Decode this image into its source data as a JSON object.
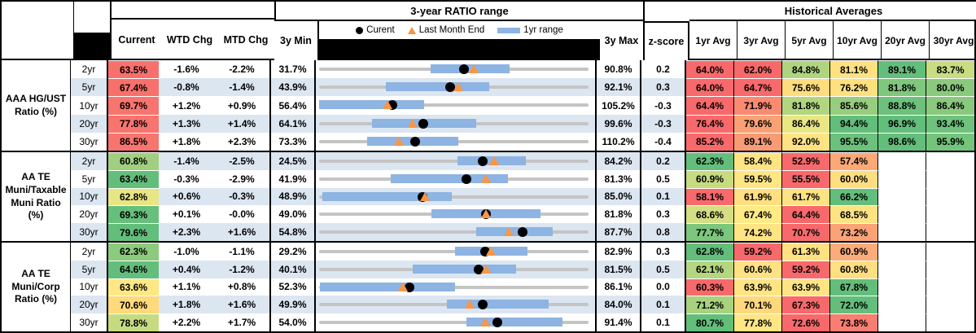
{
  "header": {
    "range_title": "3-year RATIO range",
    "hist_title": "Historical Averages",
    "col_current": "Current",
    "col_wtd": "WTD Chg",
    "col_mtd": "MTD Chg",
    "col_min": "3y Min",
    "col_max": "3y Max",
    "col_z": "z-score",
    "avg_cols": [
      "1yr Avg",
      "3yr Avg",
      "5yr Avg",
      "10yr Avg",
      "20yr Avg",
      "30yr Avg"
    ],
    "legend": {
      "current": "Curent",
      "last_month": "Last Month End",
      "range": "1yr range"
    }
  },
  "colors": {
    "stripe_blue": "#DCE6F1",
    "track_gray": "#C4C4C4",
    "range_bar_blue": "#8DB4E2",
    "current_dot_black": "#000000",
    "last_month_triangle_orange": "#F79646",
    "scale_red": "#F8696B",
    "scale_yellow": "#FFE383",
    "scale_green": "#63BE7B"
  },
  "chart_data": {
    "type": "table",
    "description": "Muni ratio table; each row has a 3-year range strip chart (gray track = 3y min-max, blue bar = 1yr range, black dot = current, orange triangle = last month end). Numeric chart fields are percents.",
    "groups": [
      {
        "label": "AAA HG/UST Ratio (%)",
        "rows": [
          {
            "tenor": "2yr",
            "current": "63.5%",
            "current_bg": "#F8706C",
            "wtd": "-1.6%",
            "mtd": "-2.2%",
            "min": "31.7%",
            "max": "90.8%",
            "z": "0.2",
            "chart": {
              "min": 31.7,
              "max": 90.8,
              "bar_lo": 56.2,
              "bar_hi": 73.4,
              "dot": 63.5,
              "tri": 65.7
            },
            "avgs": [
              {
                "v": "64.0%",
                "bg": "#F8696B"
              },
              {
                "v": "62.0%",
                "bg": "#F8696B"
              },
              {
                "v": "84.8%",
                "bg": "#AFD480"
              },
              {
                "v": "81.1%",
                "bg": "#FFE181"
              },
              {
                "v": "89.1%",
                "bg": "#63BE7B"
              },
              {
                "v": "83.7%",
                "bg": "#C9DC81"
              }
            ]
          },
          {
            "tenor": "5yr",
            "current": "67.4%",
            "current_bg": "#F8706C",
            "wtd": "-0.8%",
            "mtd": "-1.4%",
            "min": "43.9%",
            "max": "92.1%",
            "z": "0.3",
            "chart": {
              "min": 43.9,
              "max": 92.1,
              "bar_lo": 55.9,
              "bar_hi": 74.4,
              "dot": 67.4,
              "tri": 68.8
            },
            "avgs": [
              {
                "v": "64.0%",
                "bg": "#F8696B"
              },
              {
                "v": "64.7%",
                "bg": "#F8696B"
              },
              {
                "v": "75.6%",
                "bg": "#FFDC7E"
              },
              {
                "v": "76.2%",
                "bg": "#FFE07F"
              },
              {
                "v": "81.8%",
                "bg": "#7FC77D"
              },
              {
                "v": "80.0%",
                "bg": "#8BCA7E"
              }
            ]
          },
          {
            "tenor": "10yr",
            "current": "69.7%",
            "current_bg": "#F8746F",
            "wtd": "+1.2%",
            "mtd": "+0.9%",
            "min": "56.4%",
            "max": "105.2%",
            "z": "-0.3",
            "chart": {
              "min": 56.4,
              "max": 105.2,
              "bar_lo": 56.4,
              "bar_hi": 75.4,
              "dot": 69.7,
              "tri": 68.8
            },
            "avgs": [
              {
                "v": "64.4%",
                "bg": "#F8696B"
              },
              {
                "v": "71.9%",
                "bg": "#FA8A71"
              },
              {
                "v": "81.8%",
                "bg": "#B3D580"
              },
              {
                "v": "85.6%",
                "bg": "#97CD7E"
              },
              {
                "v": "88.8%",
                "bg": "#6DC17C"
              },
              {
                "v": "86.4%",
                "bg": "#89C97E"
              }
            ]
          },
          {
            "tenor": "20yr",
            "current": "77.8%",
            "current_bg": "#F8746F",
            "wtd": "+1.3%",
            "mtd": "+1.4%",
            "min": "64.1%",
            "max": "99.6%",
            "z": "-0.3",
            "chart": {
              "min": 64.1,
              "max": 99.6,
              "bar_lo": 71.1,
              "bar_hi": 84.8,
              "dot": 77.8,
              "tri": 76.4
            },
            "avgs": [
              {
                "v": "76.4%",
                "bg": "#F8696B"
              },
              {
                "v": "79.6%",
                "bg": "#F9A175"
              },
              {
                "v": "86.4%",
                "bg": "#EAE684"
              },
              {
                "v": "94.4%",
                "bg": "#63BE7B"
              },
              {
                "v": "96.9%",
                "bg": "#63BE7B"
              },
              {
                "v": "93.4%",
                "bg": "#6EC27C"
              }
            ]
          },
          {
            "tenor": "30yr",
            "current": "86.5%",
            "current_bg": "#F8746F",
            "wtd": "+1.8%",
            "mtd": "+2.3%",
            "min": "73.3%",
            "max": "110.2%",
            "z": "-0.4",
            "chart": {
              "min": 73.3,
              "max": 110.2,
              "bar_lo": 79.9,
              "bar_hi": 92.4,
              "dot": 86.5,
              "tri": 84.2
            },
            "avgs": [
              {
                "v": "85.2%",
                "bg": "#F8696B"
              },
              {
                "v": "89.1%",
                "bg": "#F99B74"
              },
              {
                "v": "92.0%",
                "bg": "#FFE383"
              },
              {
                "v": "95.5%",
                "bg": "#6CC17C"
              },
              {
                "v": "98.6%",
                "bg": "#63BE7B"
              },
              {
                "v": "95.9%",
                "bg": "#74C47C"
              }
            ]
          }
        ]
      },
      {
        "label": "AA TE Muni/Taxable Muni Ratio (%)",
        "rows": [
          {
            "tenor": "2yr",
            "current": "60.8%",
            "current_bg": "#A0CF7F",
            "wtd": "-1.4%",
            "mtd": "-2.5%",
            "min": "24.5%",
            "max": "84.2%",
            "z": "0.2",
            "chart": {
              "min": 24.5,
              "max": 84.2,
              "bar_lo": 55.1,
              "bar_hi": 70.4,
              "dot": 60.8,
              "tri": 63.3
            },
            "avgs": [
              {
                "v": "62.3%",
                "bg": "#63BE7B"
              },
              {
                "v": "58.4%",
                "bg": "#FFE483"
              },
              {
                "v": "52.9%",
                "bg": "#F8696B"
              },
              {
                "v": "57.4%",
                "bg": "#FCA977"
              },
              {
                "v": "",
                "bg": ""
              },
              {
                "v": "",
                "bg": ""
              }
            ]
          },
          {
            "tenor": "5yr",
            "current": "63.4%",
            "current_bg": "#63BE7B",
            "wtd": "-0.3%",
            "mtd": "-2.9%",
            "min": "41.9%",
            "max": "81.3%",
            "z": "0.5",
            "chart": {
              "min": 41.9,
              "max": 81.3,
              "bar_lo": 52.4,
              "bar_hi": 69.5,
              "dot": 63.4,
              "tri": 66.3
            },
            "avgs": [
              {
                "v": "60.9%",
                "bg": "#C7DB81"
              },
              {
                "v": "59.5%",
                "bg": "#FFE685"
              },
              {
                "v": "55.5%",
                "bg": "#F8696B"
              },
              {
                "v": "60.0%",
                "bg": "#FFDE80"
              },
              {
                "v": "",
                "bg": ""
              },
              {
                "v": "",
                "bg": ""
              }
            ]
          },
          {
            "tenor": "10yr",
            "current": "62.8%",
            "current_bg": "#E8E584",
            "wtd": "+0.6%",
            "mtd": "-0.3%",
            "min": "48.9%",
            "max": "85.0%",
            "z": "0.1",
            "chart": {
              "min": 48.9,
              "max": 85.0,
              "bar_lo": 49.3,
              "bar_hi": 66.7,
              "dot": 62.8,
              "tri": 63.1
            },
            "avgs": [
              {
                "v": "58.1%",
                "bg": "#F8696B"
              },
              {
                "v": "61.9%",
                "bg": "#FFDF80"
              },
              {
                "v": "61.7%",
                "bg": "#FFE282"
              },
              {
                "v": "66.2%",
                "bg": "#63BE7B"
              },
              {
                "v": "",
                "bg": ""
              },
              {
                "v": "",
                "bg": ""
              }
            ]
          },
          {
            "tenor": "20yr",
            "current": "69.3%",
            "current_bg": "#66BF7B",
            "wtd": "+0.1%",
            "mtd": "-0.0%",
            "min": "49.0%",
            "max": "81.8%",
            "z": "0.3",
            "chart": {
              "min": 49.0,
              "max": 81.8,
              "bar_lo": 62.7,
              "bar_hi": 76.0,
              "dot": 69.3,
              "tri": 69.3
            },
            "avgs": [
              {
                "v": "68.6%",
                "bg": "#D4DE82"
              },
              {
                "v": "67.4%",
                "bg": "#FFEA86"
              },
              {
                "v": "64.4%",
                "bg": "#F8696B"
              },
              {
                "v": "68.5%",
                "bg": "#FFE383"
              },
              {
                "v": "",
                "bg": ""
              },
              {
                "v": "",
                "bg": ""
              }
            ]
          },
          {
            "tenor": "30yr",
            "current": "79.6%",
            "current_bg": "#63BE7B",
            "wtd": "+2.3%",
            "mtd": "+1.6%",
            "min": "54.8%",
            "max": "87.7%",
            "z": "0.8",
            "chart": {
              "min": 54.8,
              "max": 87.7,
              "bar_lo": 74.0,
              "bar_hi": 83.3,
              "dot": 79.6,
              "tri": 78.0
            },
            "avgs": [
              {
                "v": "77.7%",
                "bg": "#7CC67D"
              },
              {
                "v": "74.2%",
                "bg": "#FFE484"
              },
              {
                "v": "70.7%",
                "bg": "#F8696B"
              },
              {
                "v": "73.2%",
                "bg": "#FBA376"
              },
              {
                "v": "",
                "bg": ""
              },
              {
                "v": "",
                "bg": ""
              }
            ]
          }
        ]
      },
      {
        "label": "AA TE Muni/Corp Ratio (%)",
        "rows": [
          {
            "tenor": "2yr",
            "current": "62.3%",
            "current_bg": "#8CCA7E",
            "wtd": "-1.0%",
            "mtd": "-1.1%",
            "min": "29.2%",
            "max": "82.9%",
            "z": "0.3",
            "chart": {
              "min": 29.2,
              "max": 82.9,
              "bar_lo": 56.3,
              "bar_hi": 70.8,
              "dot": 62.3,
              "tri": 63.4
            },
            "avgs": [
              {
                "v": "62.8%",
                "bg": "#63BE7B"
              },
              {
                "v": "59.2%",
                "bg": "#F8696B"
              },
              {
                "v": "61.3%",
                "bg": "#FFE181"
              },
              {
                "v": "60.9%",
                "bg": "#FBAC78"
              },
              {
                "v": "",
                "bg": ""
              },
              {
                "v": "",
                "bg": ""
              }
            ]
          },
          {
            "tenor": "5yr",
            "current": "64.6%",
            "current_bg": "#63BE7B",
            "wtd": "+0.4%",
            "mtd": "-1.2%",
            "min": "40.1%",
            "max": "81.5%",
            "z": "0.5",
            "chart": {
              "min": 40.1,
              "max": 81.5,
              "bar_lo": 54.5,
              "bar_hi": 70.4,
              "dot": 64.6,
              "tri": 65.8
            },
            "avgs": [
              {
                "v": "62.1%",
                "bg": "#B5D680"
              },
              {
                "v": "60.6%",
                "bg": "#FFE282"
              },
              {
                "v": "59.2%",
                "bg": "#F8696B"
              },
              {
                "v": "60.8%",
                "bg": "#FFDF80"
              },
              {
                "v": "",
                "bg": ""
              },
              {
                "v": "",
                "bg": ""
              }
            ]
          },
          {
            "tenor": "10yr",
            "current": "63.6%",
            "current_bg": "#FFE883",
            "wtd": "+1.1%",
            "mtd": "+0.8%",
            "min": "52.3%",
            "max": "86.1%",
            "z": "0.0",
            "chart": {
              "min": 52.3,
              "max": 86.1,
              "bar_lo": 52.4,
              "bar_hi": 69.4,
              "dot": 63.6,
              "tri": 62.8
            },
            "avgs": [
              {
                "v": "60.3%",
                "bg": "#F8696B"
              },
              {
                "v": "63.9%",
                "bg": "#FFE484"
              },
              {
                "v": "63.9%",
                "bg": "#FFE484"
              },
              {
                "v": "67.8%",
                "bg": "#63BE7B"
              },
              {
                "v": "",
                "bg": ""
              },
              {
                "v": "",
                "bg": ""
              }
            ]
          },
          {
            "tenor": "20yr",
            "current": "70.6%",
            "current_bg": "#FFD97A",
            "wtd": "+1.8%",
            "mtd": "+1.6%",
            "min": "49.9%",
            "max": "84.0%",
            "z": "0.1",
            "chart": {
              "min": 49.9,
              "max": 84.0,
              "bar_lo": 66.1,
              "bar_hi": 79.0,
              "dot": 70.6,
              "tri": 69.0
            },
            "avgs": [
              {
                "v": "71.2%",
                "bg": "#A9D27F"
              },
              {
                "v": "70.1%",
                "bg": "#FFD87C"
              },
              {
                "v": "67.3%",
                "bg": "#F8696B"
              },
              {
                "v": "72.0%",
                "bg": "#63BE7B"
              },
              {
                "v": "",
                "bg": ""
              },
              {
                "v": "",
                "bg": ""
              }
            ]
          },
          {
            "tenor": "30yr",
            "current": "78.8%",
            "current_bg": "#C6DB81",
            "wtd": "+2.2%",
            "mtd": "+1.7%",
            "min": "54.0%",
            "max": "91.4%",
            "z": "0.1",
            "chart": {
              "min": 54.0,
              "max": 91.4,
              "bar_lo": 74.5,
              "bar_hi": 87.8,
              "dot": 78.8,
              "tri": 77.1
            },
            "avgs": [
              {
                "v": "80.7%",
                "bg": "#63BE7B"
              },
              {
                "v": "77.8%",
                "bg": "#FFE584"
              },
              {
                "v": "72.6%",
                "bg": "#F8696B"
              },
              {
                "v": "73.8%",
                "bg": "#F87E71"
              },
              {
                "v": "",
                "bg": ""
              },
              {
                "v": "",
                "bg": ""
              }
            ]
          }
        ]
      }
    ]
  }
}
